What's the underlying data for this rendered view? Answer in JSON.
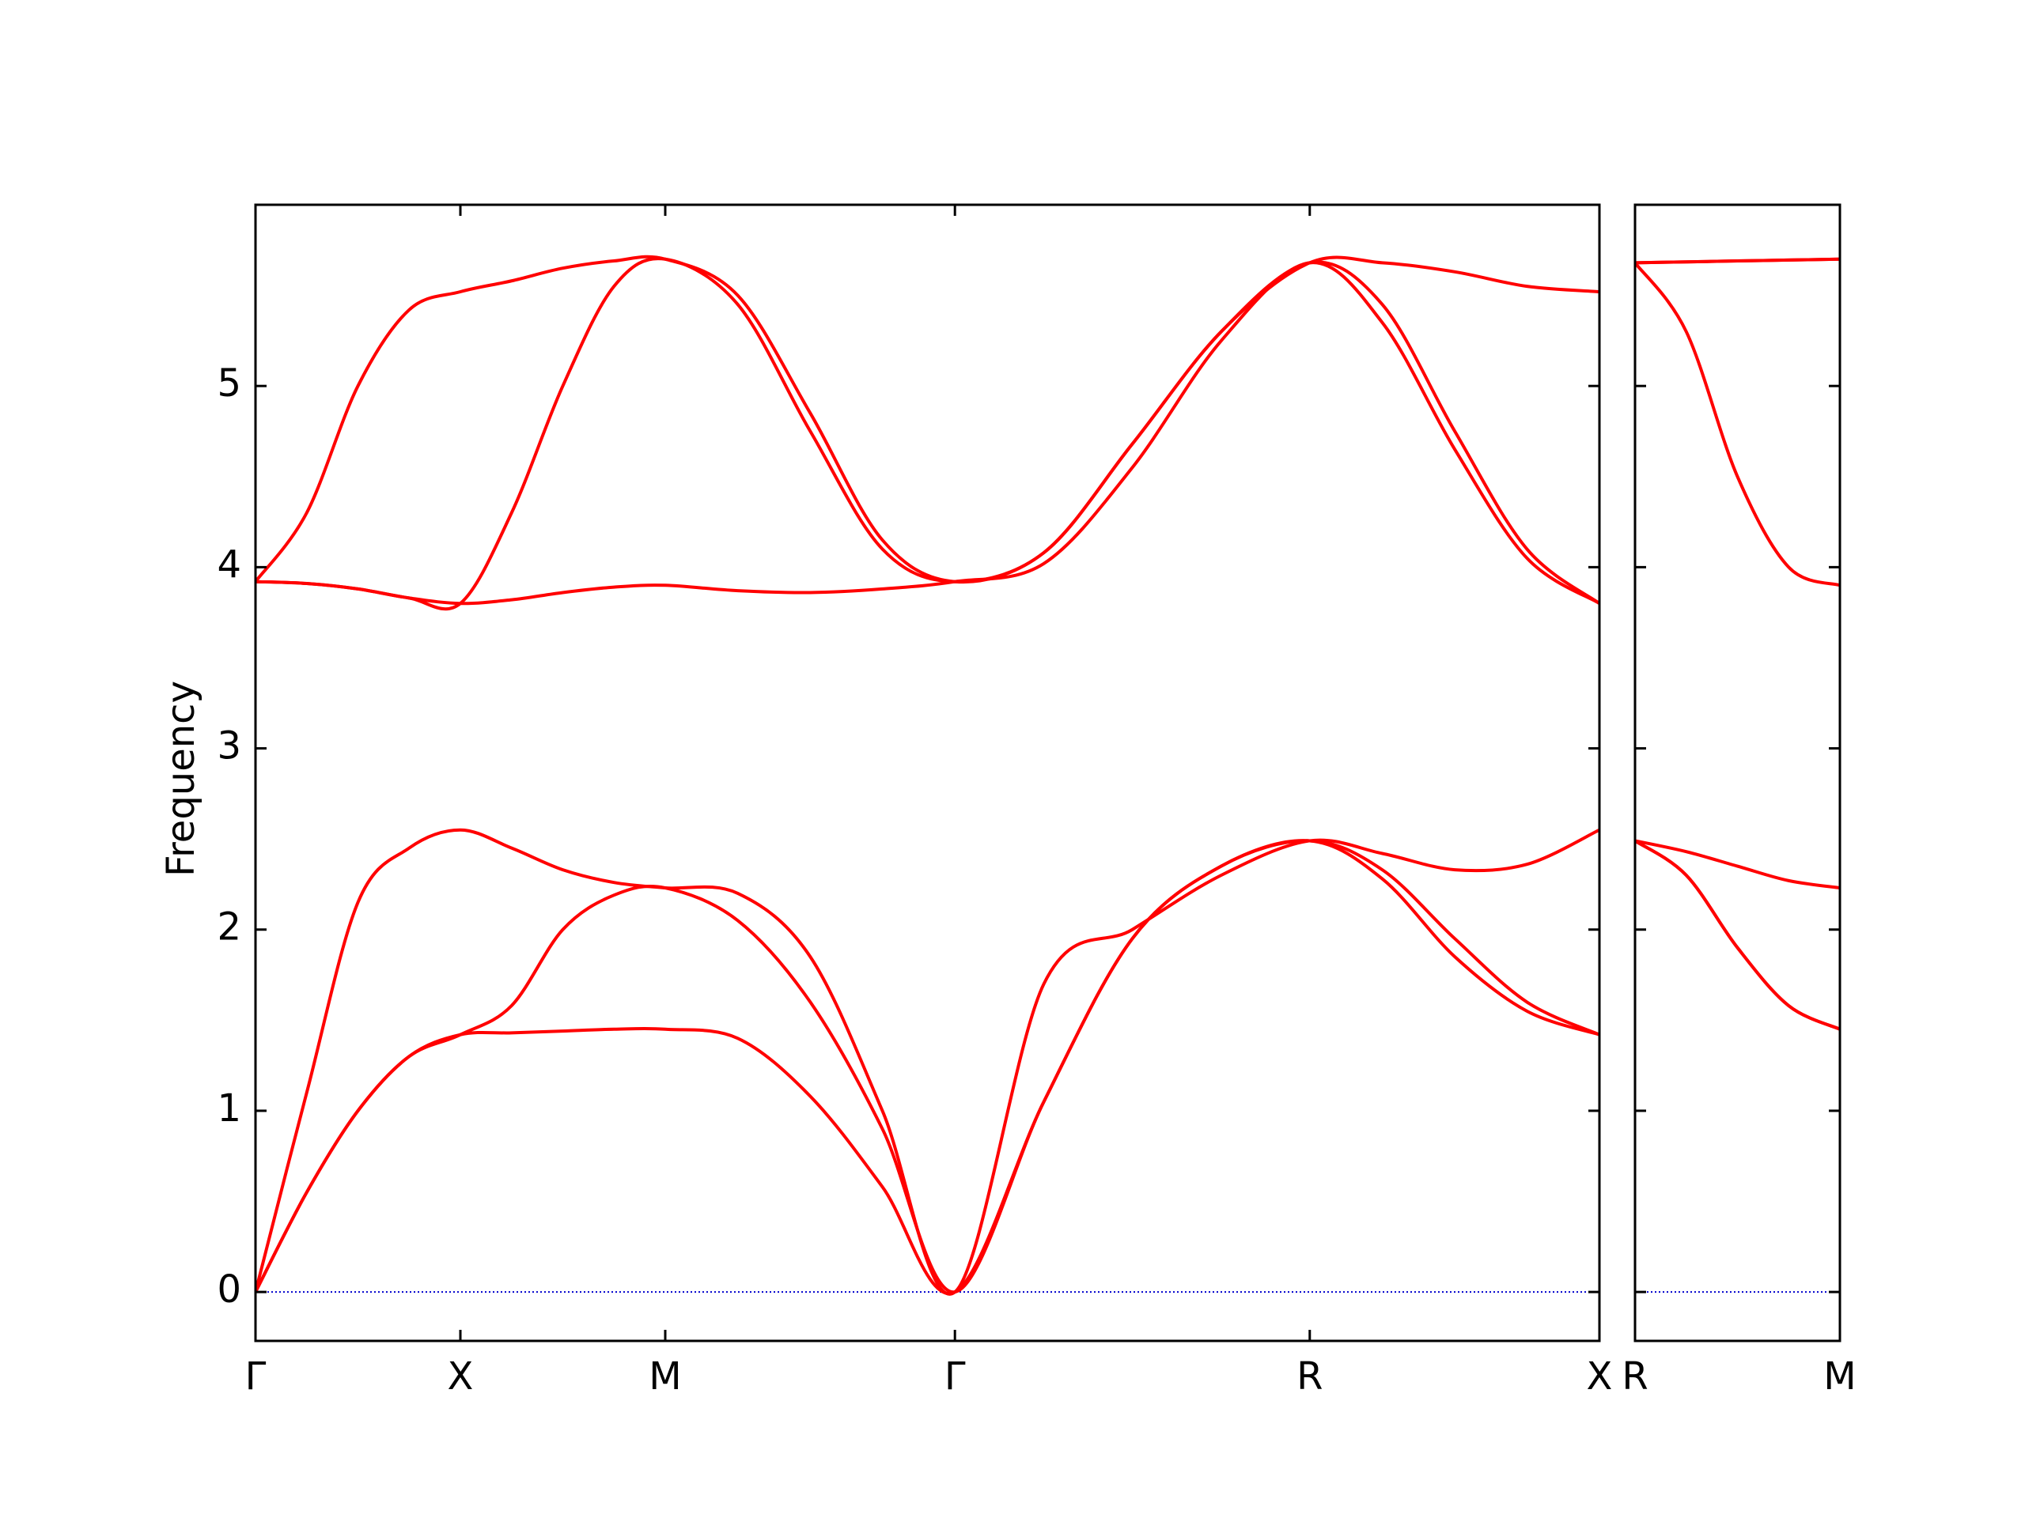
{
  "chart_data": [
    {
      "type": "line",
      "ylabel": "Frequency",
      "color": "#ff0000",
      "zero_line_color": "#0000cc",
      "x": [
        0,
        0.125,
        0.25,
        0.375,
        0.5,
        0.625,
        0.75,
        0.875,
        1.0,
        1.177,
        1.354,
        1.53,
        1.707,
        1.924,
        2.14,
        2.357,
        2.573,
        2.75,
        2.927,
        3.103,
        3.28
      ],
      "xlim": [
        0,
        3.28
      ],
      "xticks": [
        {
          "value": 0,
          "label": "Γ"
        },
        {
          "value": 0.5,
          "label": "X"
        },
        {
          "value": 1.0,
          "label": "M"
        },
        {
          "value": 1.707,
          "label": "Γ"
        },
        {
          "value": 2.573,
          "label": "R"
        },
        {
          "value": 3.28,
          "label": "X"
        }
      ],
      "ylim": [
        -0.27,
        6.0
      ],
      "yticks": [
        0,
        1,
        2,
        3,
        4,
        5
      ],
      "ytick_labels": true,
      "series": [
        {
          "values": [
            0,
            0.55,
            1.0,
            1.3,
            1.42,
            1.43,
            1.44,
            1.45,
            1.45,
            1.4,
            1.08,
            0.58,
            0,
            1.05,
            1.95,
            2.35,
            2.49,
            2.28,
            1.85,
            1.55,
            1.42
          ]
        },
        {
          "values": [
            0,
            0.55,
            1.0,
            1.3,
            1.42,
            1.58,
            2.0,
            2.19,
            2.23,
            2.05,
            1.6,
            0.9,
            0,
            1.05,
            1.95,
            2.35,
            2.49,
            2.33,
            1.95,
            1.6,
            1.42
          ]
        },
        {
          "values": [
            0,
            1.1,
            2.15,
            2.45,
            2.55,
            2.45,
            2.33,
            2.26,
            2.23,
            2.2,
            1.85,
            1.0,
            0,
            1.7,
            2.0,
            2.3,
            2.49,
            2.42,
            2.33,
            2.36,
            2.55
          ]
        },
        {
          "values": [
            3.92,
            3.91,
            3.88,
            3.83,
            3.8,
            3.82,
            3.86,
            3.89,
            3.9,
            3.87,
            3.86,
            3.88,
            3.92,
            4.02,
            4.55,
            5.25,
            5.68,
            5.35,
            4.65,
            4.05,
            3.8
          ]
        },
        {
          "values": [
            3.92,
            3.91,
            3.88,
            3.83,
            3.8,
            4.3,
            5.0,
            5.55,
            5.7,
            5.45,
            4.75,
            4.1,
            3.92,
            4.08,
            4.68,
            5.3,
            5.68,
            5.45,
            4.75,
            4.1,
            3.8
          ]
        },
        {
          "values": [
            3.92,
            4.3,
            5.0,
            5.42,
            5.52,
            5.58,
            5.65,
            5.69,
            5.7,
            5.5,
            4.85,
            4.15,
            3.92,
            4.08,
            4.68,
            5.3,
            5.68,
            5.68,
            5.63,
            5.55,
            5.52
          ]
        }
      ]
    },
    {
      "type": "line",
      "color": "#ff0000",
      "zero_line_color": "#0000cc",
      "x": [
        0,
        0.125,
        0.25,
        0.375,
        0.5
      ],
      "xlim": [
        0,
        0.5
      ],
      "xticks": [
        {
          "value": 0,
          "label": "R"
        },
        {
          "value": 0.5,
          "label": "M"
        }
      ],
      "ylim": [
        -0.27,
        6.0
      ],
      "yticks": [
        0,
        1,
        2,
        3,
        4,
        5
      ],
      "ytick_labels": false,
      "series": [
        {
          "values": [
            2.49,
            2.3,
            1.9,
            1.58,
            1.45
          ]
        },
        {
          "values": [
            2.49,
            2.3,
            1.9,
            1.58,
            1.45
          ]
        },
        {
          "values": [
            2.49,
            2.43,
            2.35,
            2.27,
            2.23
          ]
        },
        {
          "values": [
            5.68,
            5.3,
            4.5,
            4.0,
            3.9
          ]
        },
        {
          "values": [
            5.68,
            5.685,
            5.69,
            5.695,
            5.7
          ]
        },
        {
          "values": [
            5.68,
            5.685,
            5.69,
            5.695,
            5.7
          ]
        }
      ]
    }
  ]
}
